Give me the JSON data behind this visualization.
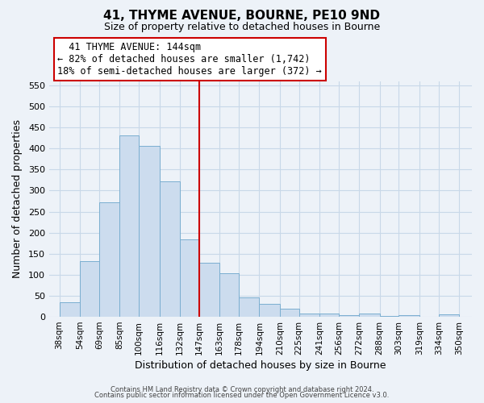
{
  "title": "41, THYME AVENUE, BOURNE, PE10 9ND",
  "subtitle": "Size of property relative to detached houses in Bourne",
  "xlabel": "Distribution of detached houses by size in Bourne",
  "ylabel": "Number of detached properties",
  "bar_left_edges": [
    38,
    54,
    69,
    85,
    100,
    116,
    132,
    147,
    163,
    178,
    194,
    210,
    225,
    241,
    256,
    272,
    288,
    303,
    319,
    334
  ],
  "bar_widths": [
    16,
    15,
    16,
    15,
    16,
    16,
    15,
    16,
    15,
    16,
    16,
    15,
    16,
    15,
    16,
    16,
    15,
    16,
    15,
    16
  ],
  "bar_heights": [
    35,
    133,
    272,
    432,
    406,
    322,
    184,
    128,
    103,
    46,
    30,
    20,
    8,
    8,
    4,
    8,
    2,
    4,
    1,
    5
  ],
  "bar_color": "#ccdcee",
  "bar_edgecolor": "#7aaed0",
  "vline_x": 147,
  "vline_color": "#cc0000",
  "xtick_labels": [
    "38sqm",
    "54sqm",
    "69sqm",
    "85sqm",
    "100sqm",
    "116sqm",
    "132sqm",
    "147sqm",
    "163sqm",
    "178sqm",
    "194sqm",
    "210sqm",
    "225sqm",
    "241sqm",
    "256sqm",
    "272sqm",
    "288sqm",
    "303sqm",
    "319sqm",
    "334sqm",
    "350sqm"
  ],
  "xtick_positions": [
    38,
    54,
    69,
    85,
    100,
    116,
    132,
    147,
    163,
    178,
    194,
    210,
    225,
    241,
    256,
    272,
    288,
    303,
    319,
    334,
    350
  ],
  "ylim": [
    0,
    560
  ],
  "xlim": [
    30,
    360
  ],
  "yticks": [
    0,
    50,
    100,
    150,
    200,
    250,
    300,
    350,
    400,
    450,
    500,
    550
  ],
  "annotation_text": "  41 THYME AVENUE: 144sqm\n← 82% of detached houses are smaller (1,742)\n18% of semi-detached houses are larger (372) →",
  "footer1": "Contains HM Land Registry data © Crown copyright and database right 2024.",
  "footer2": "Contains public sector information licensed under the Open Government Licence v3.0.",
  "background_color": "#edf2f8",
  "plot_bg_color": "#edf2f8",
  "grid_color": "#c8d8e8"
}
